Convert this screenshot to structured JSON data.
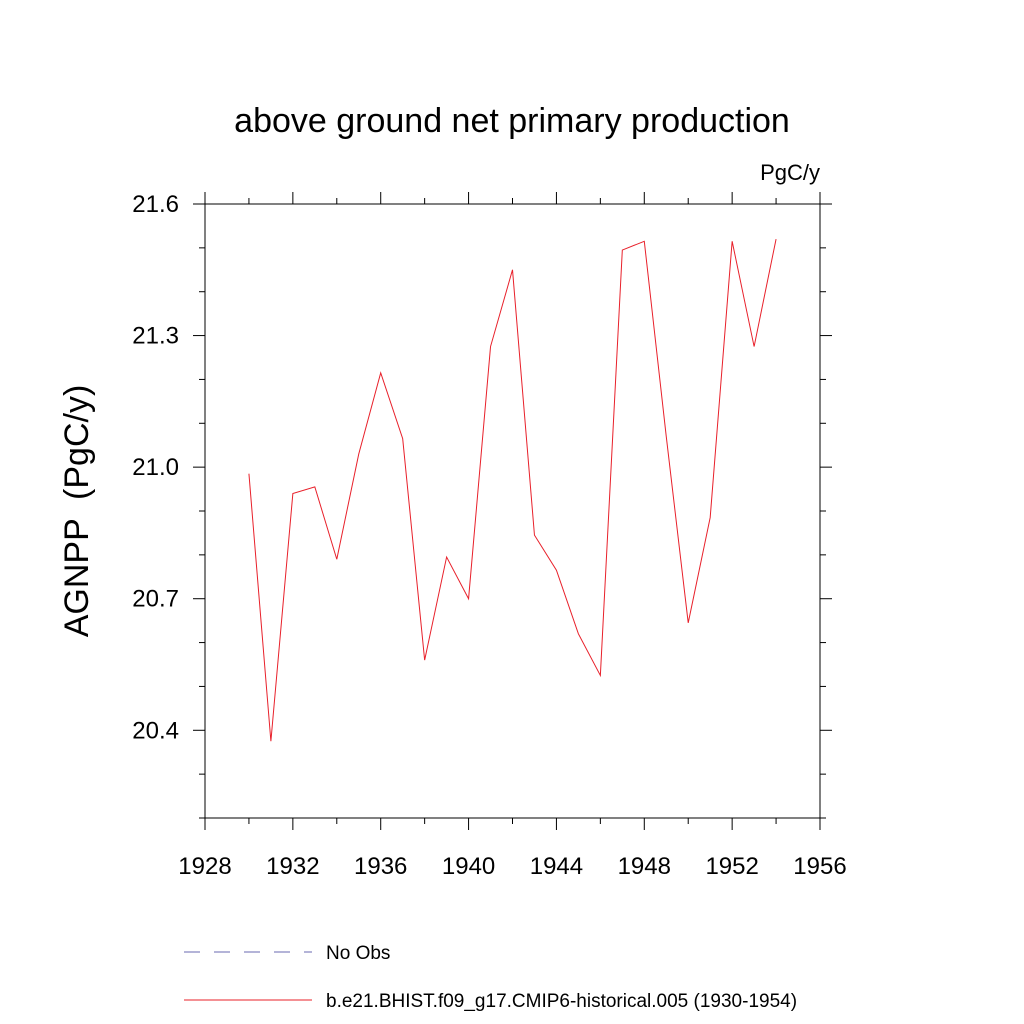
{
  "chart_data": {
    "type": "line",
    "title": "above ground net primary production",
    "units_label": "PgC/y",
    "xlabel": "",
    "ylabel": "AGNPP  (PgC/y)",
    "xlim": [
      1928,
      1956
    ],
    "ylim": [
      20.2,
      21.6
    ],
    "x_ticks": [
      1928,
      1932,
      1936,
      1940,
      1944,
      1948,
      1952,
      1956
    ],
    "y_ticks": [
      20.4,
      20.7,
      21.0,
      21.3,
      21.6
    ],
    "y_tick_labels": [
      "20.4",
      "20.7",
      "21.0",
      "21.3",
      "21.6"
    ],
    "grid": false,
    "legend_placement": "bottom",
    "series": [
      {
        "name": "No Obs",
        "style": "dashed",
        "color": "#6a6ab0",
        "x": [],
        "values": []
      },
      {
        "name": "b.e21.BHIST.f09_g17.CMIP6-historical.005 (1930-1954)",
        "style": "solid",
        "color": "#e8202a",
        "x": [
          1930,
          1931,
          1932,
          1933,
          1934,
          1935,
          1936,
          1937,
          1938,
          1939,
          1940,
          1941,
          1942,
          1943,
          1944,
          1945,
          1946,
          1947,
          1948,
          1949,
          1950,
          1951,
          1952,
          1953,
          1954
        ],
        "values": [
          20.985,
          20.375,
          20.94,
          20.955,
          20.79,
          21.03,
          21.215,
          21.065,
          20.56,
          20.795,
          20.7,
          21.275,
          21.45,
          20.845,
          20.765,
          20.62,
          20.525,
          21.495,
          21.515,
          21.07,
          20.645,
          20.885,
          21.515,
          21.275,
          21.52
        ]
      }
    ]
  }
}
